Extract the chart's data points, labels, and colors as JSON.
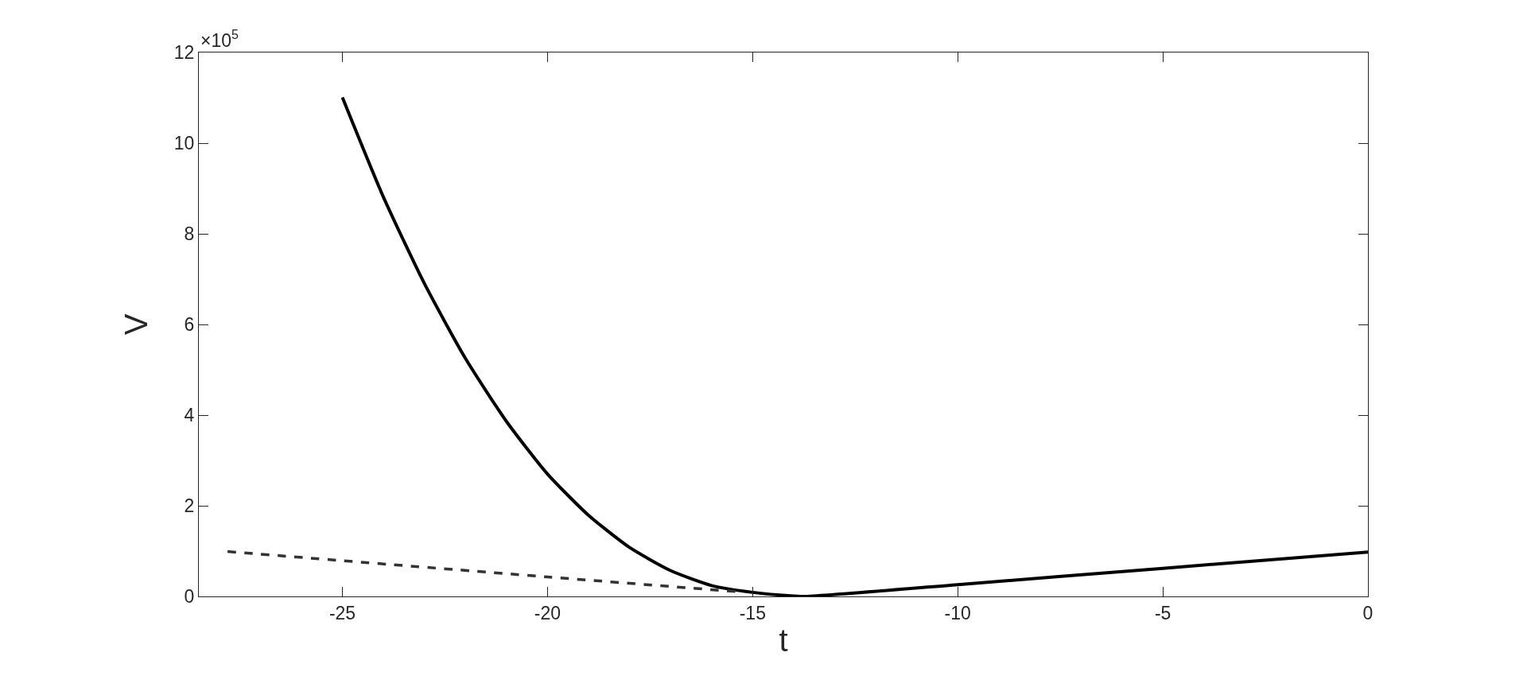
{
  "chart_data": {
    "type": "line",
    "xlabel": "t",
    "ylabel": "V",
    "annotations": [
      "×10$^{5}$"
    ],
    "series": [
      {
        "color": "#000000",
        "line_style": "solid",
        "x": [
          -25,
          -24,
          -23,
          -22,
          -21,
          -20,
          -19,
          -18,
          -17,
          -16,
          -15,
          -14,
          -13.7,
          -10,
          -5,
          0
        ],
        "values": [
          11.01,
          8.81,
          6.9,
          5.25,
          3.86,
          2.7,
          1.79,
          1.08,
          0.57,
          0.24,
          0.09,
          0.01,
          0,
          0.26,
          0.62,
          0.98
        ]
      },
      {
        "color": "#333333",
        "line_style": "dashed",
        "x": [
          -27.8,
          -20,
          -15.3
        ],
        "values": [
          0.99,
          0.43,
          0.1
        ]
      }
    ],
    "xlim": [
      -28.5,
      0
    ],
    "xticks": [
      -25,
      -20,
      -15,
      -10,
      -5,
      0
    ],
    "ylim": [
      0,
      12
    ],
    "yticks": [
      0,
      2,
      4,
      6,
      8,
      10,
      12
    ],
    "marker": "none"
  }
}
